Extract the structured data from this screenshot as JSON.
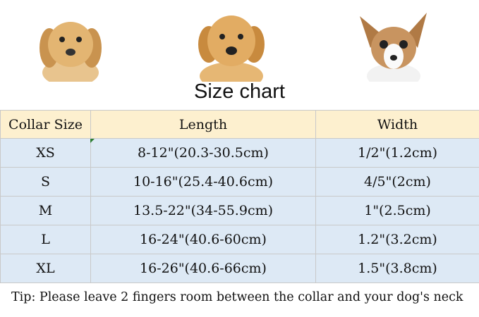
{
  "title": "Size chart",
  "table": {
    "headers": [
      "Collar Size",
      "Length",
      "Width"
    ],
    "rows": [
      [
        "XS",
        "8-12\"(20.3-30.5cm)",
        "1/2\"(1.2cm)"
      ],
      [
        "S",
        "10-16\"(25.4-40.6cm)",
        "4/5\"(2cm)"
      ],
      [
        "M",
        "13.5-22\"(34-55.9cm)",
        "1\"(2.5cm)"
      ],
      [
        "L",
        "16-24\"(40.6-60cm)",
        "1.2\"(3.2cm)"
      ],
      [
        "XL",
        "16-26\"(40.6-66cm)",
        "1.5\"(3.8cm)"
      ]
    ]
  },
  "tip": "Tip: Please leave 2 fingers room between the collar and your dog's neck",
  "colors": {
    "header_bg": "#fdf0cf",
    "row_bg": "#dde9f5"
  }
}
